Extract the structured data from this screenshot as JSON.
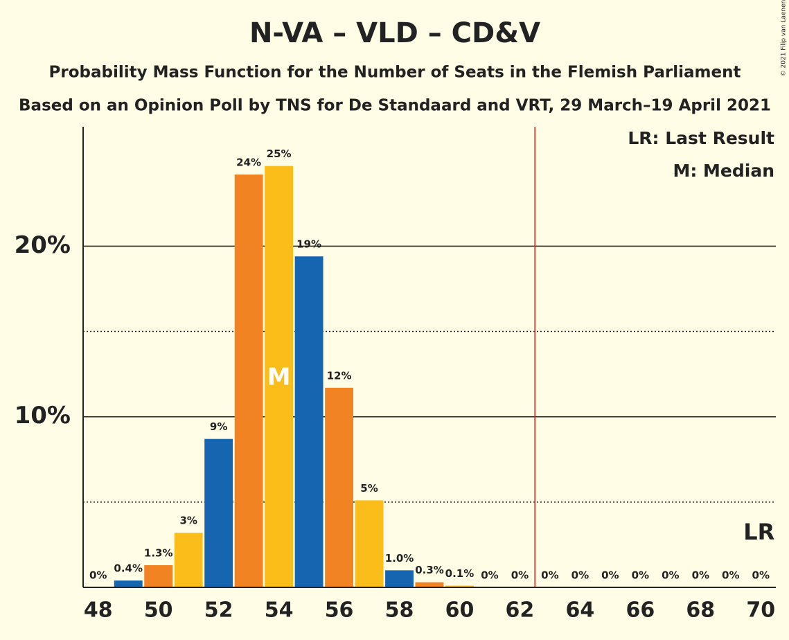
{
  "chart_data": {
    "type": "bar",
    "title": "N-VA – VLD – CD&V",
    "subtitle": "Probability Mass Function for the Number of Seats in the Flemish Parliament",
    "subtitle2": "Based on an Opinion Poll by TNS for De Standaard and VRT, 29 March–19 April 2021",
    "copyright": "© 2021 Filip van Laenen",
    "x": [
      48,
      49,
      50,
      51,
      52,
      53,
      54,
      55,
      56,
      57,
      58,
      59,
      60,
      61,
      62,
      63,
      64,
      65,
      66,
      67,
      68,
      69,
      70
    ],
    "values": [
      0,
      0.4,
      1.3,
      3.2,
      8.7,
      24.2,
      24.7,
      19.4,
      11.7,
      5.1,
      1.0,
      0.3,
      0.1,
      0,
      0,
      0,
      0,
      0,
      0,
      0,
      0,
      0,
      0
    ],
    "value_labels": [
      "0%",
      "0.4%",
      "1.3%",
      "3%",
      "9%",
      "24%",
      "25%",
      "19%",
      "12%",
      "5%",
      "1.0%",
      "0.3%",
      "0.1%",
      "0%",
      "0%",
      "0%",
      "0%",
      "0%",
      "0%",
      "0%",
      "0%",
      "0%",
      "0%"
    ],
    "colors": [
      "#fbbd1a",
      "#1565b0",
      "#f28322"
    ],
    "xlim": [
      47.5,
      70.5
    ],
    "xticks": [
      48,
      50,
      52,
      54,
      56,
      58,
      60,
      62,
      64,
      66,
      68,
      70
    ],
    "ylim": [
      0,
      27
    ],
    "yticks": [
      {
        "value": 10,
        "label": "10%"
      },
      {
        "value": 20,
        "label": "20%"
      }
    ],
    "minor_yticks": [
      5,
      15
    ],
    "grid": true,
    "majority_line": 62.5,
    "majority_color": "#e0201b",
    "median": 54,
    "median_label": "M",
    "last_result": 70,
    "last_result_label": "LR",
    "legend": [
      "LR: Last Result",
      "M: Median"
    ],
    "legend_position": "upper right"
  }
}
